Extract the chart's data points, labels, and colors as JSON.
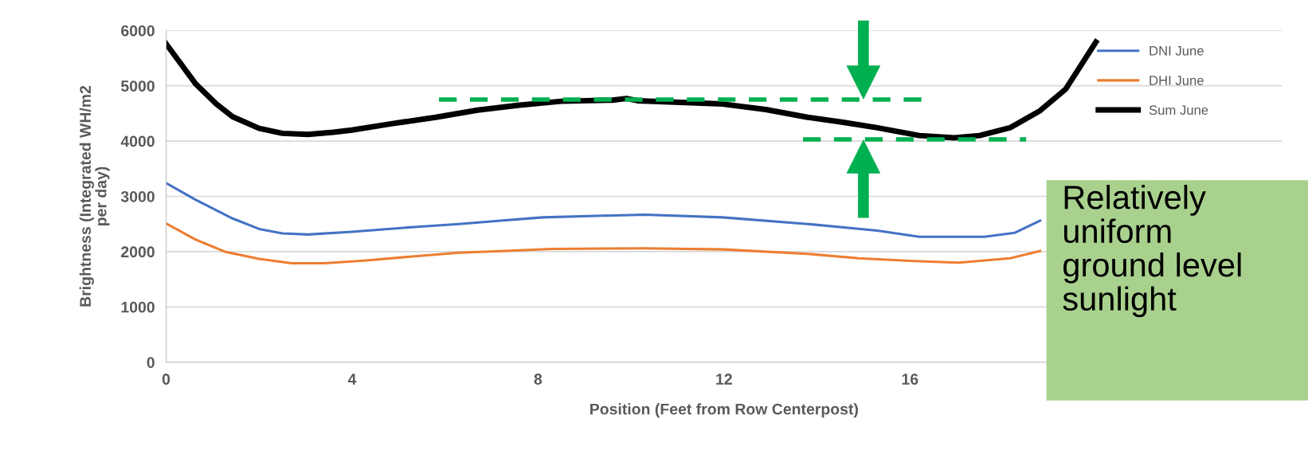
{
  "chart_data": {
    "type": "line",
    "xlabel": "Position (Feet from Row Centerpost)",
    "ylabel": "Brightness (Integrated WH/m2\nper day)",
    "xlim": [
      0,
      24
    ],
    "xticks": [
      0,
      4,
      8,
      12,
      16
    ],
    "ylim": [
      0,
      6000
    ],
    "yticks": [
      0,
      1000,
      2000,
      3000,
      4000,
      5000,
      6000
    ],
    "grid": "y",
    "legend": "top right",
    "line_style": "solid",
    "annotations": [
      "Relatively\nuniform\nground level\nsunlight"
    ],
    "series": [
      {
        "name": "DNI June",
        "color": "#4472c4",
        "x": [
          0,
          0.63,
          1.43,
          2.0,
          2.5,
          3.05,
          4.0,
          5.4,
          6.3,
          7.2,
          8.1,
          9.4,
          10.3,
          11.97,
          13.8,
          15.3,
          16.2,
          17.6,
          18.25,
          18.8
        ],
        "values": [
          3240,
          2940,
          2600,
          2410,
          2330,
          2310,
          2360,
          2450,
          2500,
          2560,
          2620,
          2650,
          2670,
          2620,
          2500,
          2380,
          2270,
          2270,
          2340,
          2560
        ]
      },
      {
        "name": "DHI June",
        "color": "#ed7d31",
        "x": [
          0,
          0.63,
          1.26,
          2.0,
          2.7,
          3.4,
          4.3,
          5.4,
          6.3,
          7.2,
          8.3,
          10.3,
          12.0,
          13.8,
          14.9,
          16.1,
          17.05,
          18.15,
          18.8
        ],
        "values": [
          2510,
          2220,
          2000,
          1870,
          1790,
          1790,
          1840,
          1920,
          1980,
          2010,
          2050,
          2060,
          2040,
          1960,
          1880,
          1830,
          1800,
          1880,
          2010
        ]
      },
      {
        "name": "Sum June",
        "color": "#000000",
        "x": [
          0,
          0.63,
          1.08,
          1.43,
          2.0,
          2.5,
          3.05,
          3.6,
          4.0,
          4.9,
          5.8,
          6.7,
          7.6,
          8.5,
          9.6,
          9.9,
          10.14,
          11.97,
          12.9,
          13.8,
          14.56,
          15.3,
          16.2,
          16.95,
          17.5,
          18.15,
          18.8,
          19.35,
          20.0
        ],
        "values": [
          5760,
          5040,
          4670,
          4440,
          4230,
          4140,
          4120,
          4160,
          4200,
          4320,
          4430,
          4560,
          4650,
          4720,
          4740,
          4770,
          4730,
          4670,
          4570,
          4430,
          4340,
          4240,
          4100,
          4060,
          4100,
          4240,
          4550,
          4940,
          5790
        ]
      },
      {
        "color": "#00b050",
        "line_style": "dashed",
        "x": [
          5.87,
          16.3
        ],
        "values": [
          4750,
          4750
        ]
      },
      {
        "color": "#00b050",
        "line_style": "dashed",
        "x": [
          13.7,
          18.5
        ],
        "values": [
          4030,
          4030
        ]
      }
    ]
  }
}
